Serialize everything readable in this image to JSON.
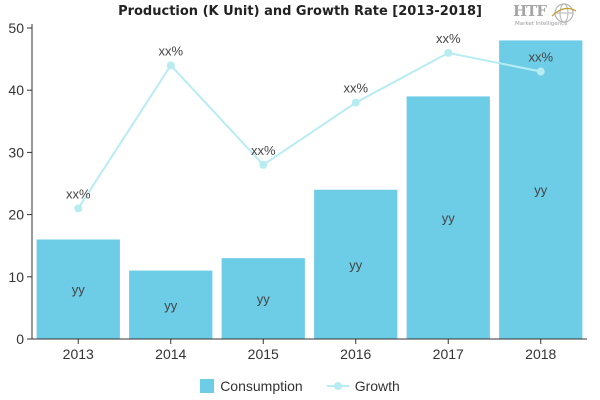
{
  "chart_data": {
    "type": "bar",
    "title": "Production (K Unit) and Growth Rate [2013-2018]",
    "categories": [
      "2013",
      "2014",
      "2015",
      "2016",
      "2017",
      "2018"
    ],
    "ylim": [
      0,
      50
    ],
    "yticks": [
      0,
      10,
      20,
      30,
      40,
      50
    ],
    "xlabel": "",
    "ylabel": "",
    "legend_position": "bottom-center",
    "series": [
      {
        "name": "Consumption",
        "kind": "bar",
        "color": "#6dcde6",
        "values": [
          16,
          11,
          13,
          24,
          39,
          48
        ],
        "labels": [
          "yy",
          "yy",
          "yy",
          "yy",
          "yy",
          "yy"
        ]
      },
      {
        "name": "Growth",
        "kind": "line",
        "color": "#b8ecf3",
        "values": [
          21,
          44,
          28,
          38,
          46,
          43
        ],
        "labels": [
          "xx%",
          "xx%",
          "xx%",
          "xx%",
          "xx%",
          "xx%"
        ]
      }
    ]
  },
  "logo": {
    "word": "HTF",
    "tagline": "Market Intelligence"
  }
}
